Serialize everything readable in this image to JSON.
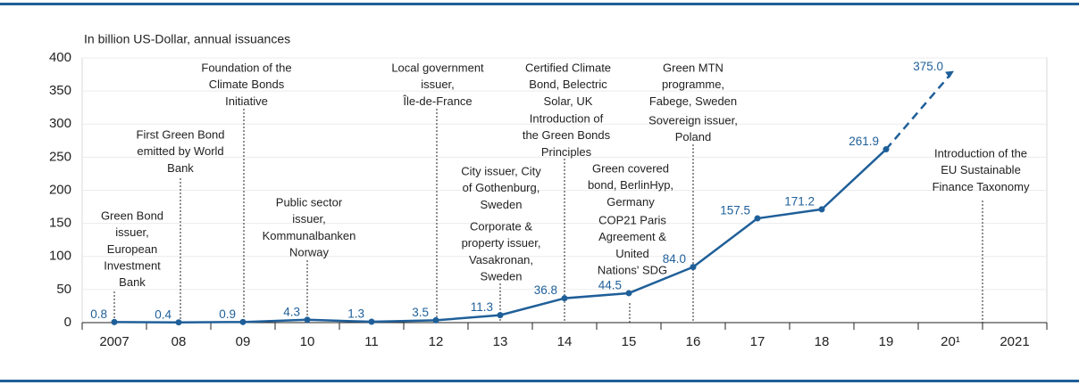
{
  "chart_data": {
    "type": "line",
    "axis_label": "In billion US-Dollar, annual issuances",
    "categories": [
      "2007",
      "08",
      "09",
      "10",
      "11",
      "12",
      "13",
      "14",
      "15",
      "16",
      "17",
      "18",
      "19",
      "20¹",
      "2021"
    ],
    "series": [
      {
        "color": "#1f5f99",
        "values": [
          0.8,
          0.4,
          0.9,
          4.3,
          1.3,
          3.5,
          11.3,
          36.8,
          44.5,
          84.0,
          157.5,
          171.2,
          261.9,
          375.0,
          null
        ],
        "value_labels": [
          "0.8",
          "0.4",
          "0.9",
          "4.3",
          "1.3",
          "3.5",
          "11.3",
          "36.8",
          "44.5",
          "84.0",
          "157.5",
          "171.2",
          "261.9",
          "375.0",
          null
        ],
        "dashed_segments": [
          12
        ]
      }
    ],
    "ylim": [
      0,
      400
    ],
    "yticks": [
      0,
      50,
      100,
      150,
      200,
      250,
      300,
      350,
      400
    ],
    "grid": true,
    "annotations": [
      {
        "category": "2007",
        "lines": [
          "Green Bond",
          "issuer,",
          "European",
          "Investment",
          "Bank"
        ]
      },
      {
        "category": "08",
        "lines": [
          "First Green Bond",
          "emitted by World",
          "Bank"
        ]
      },
      {
        "category": "09",
        "lines": [
          "Foundation of the",
          "Climate Bonds",
          "Initiative"
        ]
      },
      {
        "category": "10",
        "lines": [
          "Public sector",
          "issuer,",
          "Kommunalbanken",
          "Norway"
        ]
      },
      {
        "category": "12",
        "lines": [
          "Local government",
          "issuer,",
          "Île-de-France"
        ]
      },
      {
        "category": "13",
        "lines": [
          "City issuer, City",
          "of Gothenburg,",
          "Sweden"
        ]
      },
      {
        "category": "13",
        "lines": [
          "Corporate &",
          "property issuer,",
          "Vasakronan,",
          "Sweden"
        ]
      },
      {
        "category": "14",
        "lines": [
          "Certified Climate",
          "Bond, Belectric",
          "Solar, UK"
        ]
      },
      {
        "category": "14",
        "lines": [
          "Introduction of",
          "the Green Bonds",
          "Principles"
        ]
      },
      {
        "category": "15",
        "lines": [
          "Green covered",
          "bond, BerlinHyp,",
          "Germany"
        ]
      },
      {
        "category": "15",
        "lines": [
          "COP21 Paris",
          "Agreement &",
          "United",
          "Nations' SDG"
        ]
      },
      {
        "category": "16",
        "lines": [
          "Green MTN",
          "programme,",
          "Fabege, Sweden"
        ]
      },
      {
        "category": "16",
        "lines": [
          "Sovereign issuer,",
          "Poland"
        ]
      },
      {
        "category": "2021",
        "lines": [
          "Introduction of the",
          "EU Sustainable",
          "Finance Taxonomy"
        ]
      }
    ]
  }
}
